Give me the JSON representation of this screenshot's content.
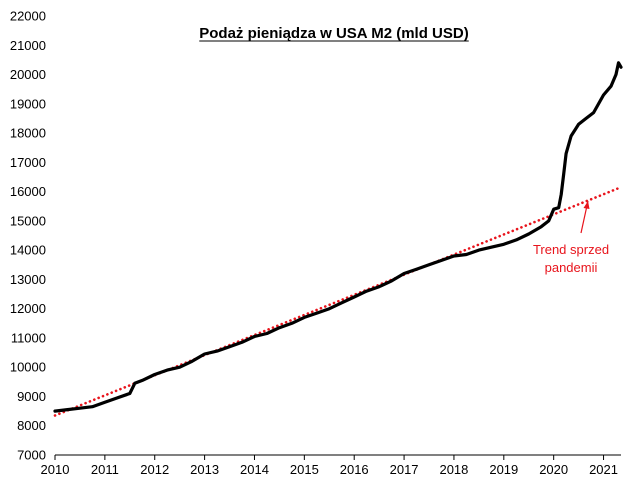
{
  "chart_data": {
    "type": "line",
    "title": "Podaż pieniądza  w USA M2 (mld USD)",
    "xlabel": "",
    "ylabel": "",
    "xlim": [
      2010.0,
      2021.35
    ],
    "ylim": [
      7000,
      22000
    ],
    "grid": false,
    "legend": "none",
    "y_ticks": [
      "7000",
      "8000",
      "9000",
      "10000",
      "11000",
      "12000",
      "13000",
      "14000",
      "15000",
      "16000",
      "17000",
      "18000",
      "19000",
      "20000",
      "21000",
      "22000"
    ],
    "x_ticks": [
      "2010",
      "2011",
      "2012",
      "2013",
      "2014",
      "2015",
      "2016",
      "2017",
      "2018",
      "2019",
      "2020",
      "2021"
    ],
    "series": [
      {
        "type": "line",
        "color": "#000000",
        "x": [
          2010.0,
          2010.25,
          2010.5,
          2010.75,
          2011.0,
          2011.25,
          2011.5,
          2011.6,
          2011.75,
          2012.0,
          2012.25,
          2012.5,
          2012.75,
          2013.0,
          2013.25,
          2013.5,
          2013.75,
          2014.0,
          2014.25,
          2014.5,
          2014.75,
          2015.0,
          2015.25,
          2015.5,
          2015.75,
          2016.0,
          2016.25,
          2016.5,
          2016.75,
          2017.0,
          2017.25,
          2017.5,
          2017.75,
          2018.0,
          2018.25,
          2018.5,
          2018.75,
          2019.0,
          2019.25,
          2019.5,
          2019.75,
          2019.9,
          2020.0,
          2020.1,
          2020.15,
          2020.2,
          2020.25,
          2020.35,
          2020.5,
          2020.65,
          2020.8,
          2021.0,
          2021.15,
          2021.25,
          2021.3,
          2021.35
        ],
        "values": [
          8500,
          8550,
          8600,
          8650,
          8800,
          8950,
          9100,
          9450,
          9550,
          9750,
          9900,
          10000,
          10200,
          10450,
          10550,
          10700,
          10850,
          11050,
          11150,
          11350,
          11500,
          11700,
          11850,
          12000,
          12200,
          12400,
          12600,
          12750,
          12950,
          13200,
          13350,
          13500,
          13650,
          13800,
          13850,
          14000,
          14100,
          14200,
          14350,
          14550,
          14800,
          15000,
          15400,
          15450,
          15900,
          16600,
          17300,
          17900,
          18300,
          18500,
          18700,
          19300,
          19600,
          20000,
          20400,
          20250
        ]
      },
      {
        "type": "line",
        "style": "dotted",
        "color": "#e8141c",
        "x": [
          2010.0,
          2021.35
        ],
        "values": [
          8350,
          16150
        ]
      }
    ],
    "annotations": [
      {
        "text": "Trend sprzed",
        "color": "#e8141c"
      },
      {
        "text": "pandemii",
        "color": "#e8141c"
      }
    ]
  }
}
